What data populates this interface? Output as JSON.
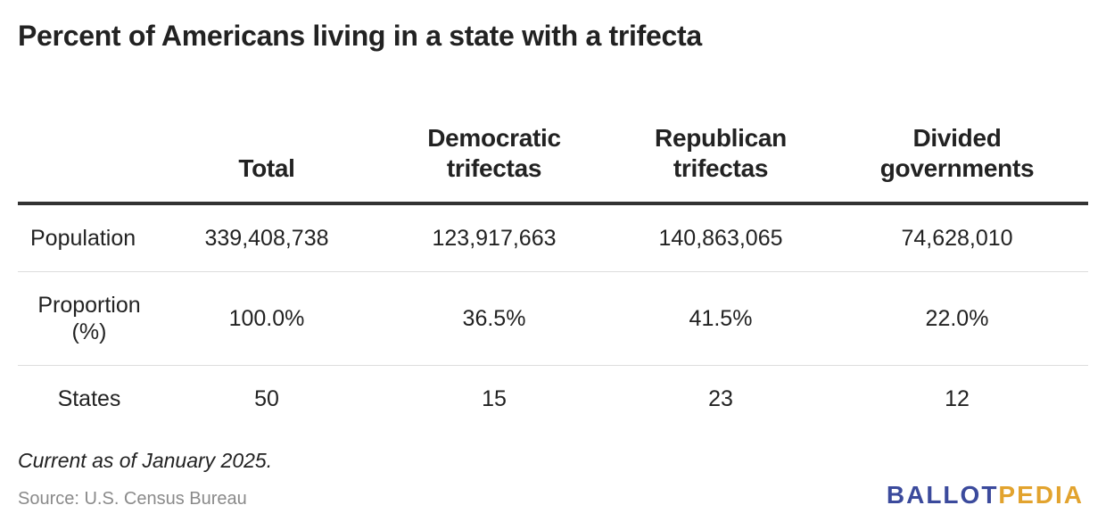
{
  "title": "Percent of Americans living in a state with a trifecta",
  "colors": {
    "text": "#222222",
    "header_rule": "#333333",
    "row_rule": "#dddddd",
    "source": "#8a8a8a",
    "logo_blue": "#3b4a9c",
    "logo_gold": "#e2a32e"
  },
  "chart_data": {
    "type": "table",
    "columns": [
      {
        "line1": "",
        "line2": ""
      },
      {
        "line1": "",
        "line2": "Total"
      },
      {
        "line1": "Democratic",
        "line2": "trifectas"
      },
      {
        "line1": "Republican",
        "line2": "trifectas"
      },
      {
        "line1": "Divided",
        "line2": "governments"
      }
    ],
    "rows": [
      {
        "label_line1": "Population",
        "label_line2": "",
        "values": [
          "339,408,738",
          "123,917,663",
          "140,863,065",
          "74,628,010"
        ]
      },
      {
        "label_line1": "Proportion",
        "label_line2": "(%)",
        "values": [
          "100.0%",
          "36.5%",
          "41.5%",
          "22.0%"
        ]
      },
      {
        "label_line1": "States",
        "label_line2": "",
        "values": [
          "50",
          "15",
          "23",
          "12"
        ]
      }
    ]
  },
  "note": "Current as of January 2025.",
  "source": "Source: U.S. Census Bureau",
  "logo": {
    "part1": "BALLOT",
    "part2": "PEDIA"
  }
}
